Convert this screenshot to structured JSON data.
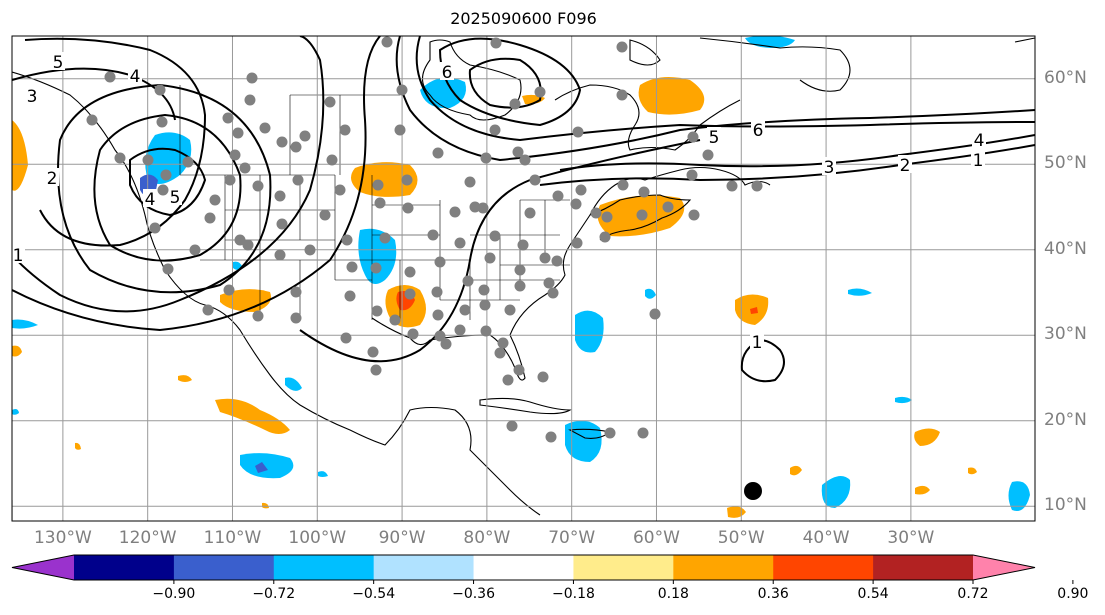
{
  "title": "2025090600 F096",
  "lat_labels": [
    {
      "text": "60°N",
      "lat": 60
    },
    {
      "text": "50°N",
      "lat": 50
    },
    {
      "text": "40°N",
      "lat": 40
    },
    {
      "text": "30°N",
      "lat": 30
    },
    {
      "text": "20°N",
      "lat": 20
    },
    {
      "text": "10°N",
      "lat": 10
    }
  ],
  "lon_labels": [
    {
      "text": "130°W",
      "lon": -130
    },
    {
      "text": "120°W",
      "lon": -120
    },
    {
      "text": "110°W",
      "lon": -110
    },
    {
      "text": "100°W",
      "lon": -100
    },
    {
      "text": "90°W",
      "lon": -90
    },
    {
      "text": "80°W",
      "lon": -80
    },
    {
      "text": "70°W",
      "lon": -70
    },
    {
      "text": "60°W",
      "lon": -60
    },
    {
      "text": "50°W",
      "lon": -50
    },
    {
      "text": "40°W",
      "lon": -40
    },
    {
      "text": "30°W",
      "lon": -30
    }
  ],
  "colorbar": {
    "labels": [
      "−0.90",
      "−0.72",
      "−0.54",
      "−0.36",
      "−0.18",
      "0.18",
      "0.36",
      "0.54",
      "0.72",
      "0.90"
    ],
    "colors": [
      "#9a32cd",
      "#00008b",
      "#3a5fcd",
      "#00bfff",
      "#b0e2ff",
      "#ffffff",
      "#ffec8b",
      "#ffa500",
      "#ff4500",
      "#b22222",
      "#ff82ab"
    ]
  },
  "contour_labels": [
    "5",
    "4",
    "3",
    "2",
    "1",
    "6",
    "5",
    "4",
    "6",
    "5",
    "4",
    "3",
    "2",
    "1",
    "1"
  ],
  "colors": {
    "dot": "#808080",
    "contour": "#000000",
    "coast": "#000000",
    "grid": "#999999"
  }
}
